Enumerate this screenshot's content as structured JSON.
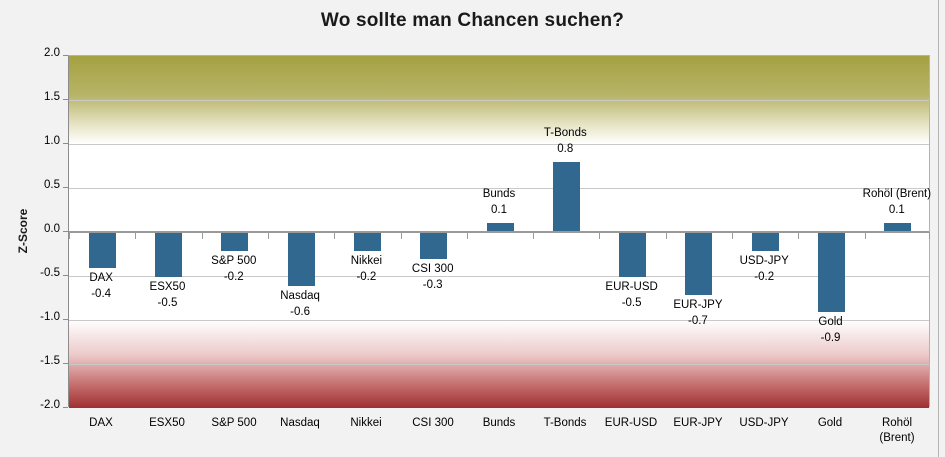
{
  "title": "Wo sollte man Chancen suchen?",
  "chart_data": {
    "type": "bar",
    "title": "Wo sollte man Chancen suchen?",
    "xlabel": "",
    "ylabel": "Z-Score",
    "categories": [
      "DAX",
      "ESX50",
      "S&P 500",
      "Nasdaq",
      "Nikkei",
      "CSI 300",
      "Bunds",
      "T-Bonds",
      "EUR-USD",
      "EUR-JPY",
      "USD-JPY",
      "Gold",
      "Rohöl (Brent)"
    ],
    "values": [
      -0.4,
      -0.5,
      -0.2,
      -0.6,
      -0.2,
      -0.3,
      0.1,
      0.8,
      -0.5,
      -0.7,
      -0.2,
      -0.9,
      0.1
    ],
    "data_labels": [
      "-0.4",
      "-0.5",
      "-0.2",
      "-0.6",
      "-0.2",
      "-0.3",
      "0.1",
      "0.8",
      "-0.5",
      "-0.7",
      "-0.2",
      "-0.9",
      "0.1"
    ],
    "ylim": [
      -2.0,
      2.0
    ],
    "ytick_step": 0.5,
    "yticks": [
      "2.0",
      "1.5",
      "1.0",
      "0.5",
      "0.0",
      "-0.5",
      "-1.0",
      "-1.5",
      "-2.0"
    ],
    "grid": true,
    "legend": "none",
    "colors": {
      "bar": "#31688F",
      "upper_zone": "#A4A142",
      "lower_zone": "#9F2F2F",
      "background": "#F2F2F2",
      "plot_background": "#FFFFFF",
      "gridline": "#C9C9C9",
      "zero_axis": "#9A9A9A"
    },
    "zones": {
      "upper": {
        "from": 1.0,
        "to": 2.0
      },
      "lower": {
        "from": -2.0,
        "to": -1.0
      }
    }
  }
}
